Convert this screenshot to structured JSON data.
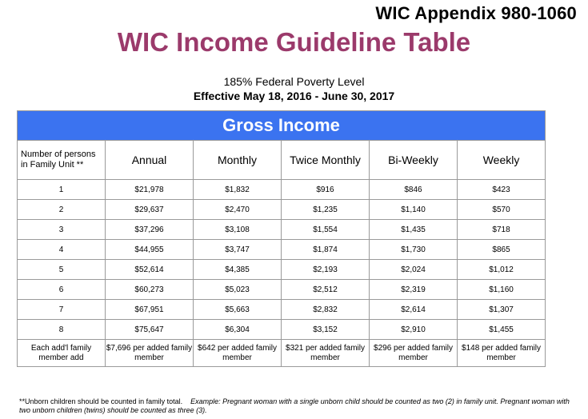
{
  "header": {
    "appendix": "WIC Appendix 980-1060",
    "title": "WIC Income Guideline Table",
    "subtitle": "185% Federal Poverty Level",
    "effective": "Effective May 18, 2016 - June 30, 2017"
  },
  "table": {
    "banner": "Gross Income",
    "columns": [
      "Number of persons in Family Unit **",
      "Annual",
      "Monthly",
      "Twice Monthly",
      "Bi-Weekly",
      "Weekly"
    ],
    "rows": [
      [
        "1",
        "$21,978",
        "$1,832",
        "$916",
        "$846",
        "$423"
      ],
      [
        "2",
        "$29,637",
        "$2,470",
        "$1,235",
        "$1,140",
        "$570"
      ],
      [
        "3",
        "$37,296",
        "$3,108",
        "$1,554",
        "$1,435",
        "$718"
      ],
      [
        "4",
        "$44,955",
        "$3,747",
        "$1,874",
        "$1,730",
        "$865"
      ],
      [
        "5",
        "$52,614",
        "$4,385",
        "$2,193",
        "$2,024",
        "$1,012"
      ],
      [
        "6",
        "$60,273",
        "$5,023",
        "$2,512",
        "$2,319",
        "$1,160"
      ],
      [
        "7",
        "$67,951",
        "$5,663",
        "$2,832",
        "$2,614",
        "$1,307"
      ],
      [
        "8",
        "$75,647",
        "$6,304",
        "$3,152",
        "$2,910",
        "$1,455"
      ]
    ],
    "additional": [
      "Each add'l family member add",
      "$7,696 per added family member",
      "$642 per added family member",
      "$321 per added family member",
      "$296 per added family member",
      "$148 per added family member"
    ]
  },
  "footnote": {
    "main": "**Unborn children should be counted in family total.",
    "example": "Example: Pregnant woman with a single unborn child should be counted as two (2) in family unit. Pregnant woman with two unborn children (twins) should be counted as three (3)."
  }
}
